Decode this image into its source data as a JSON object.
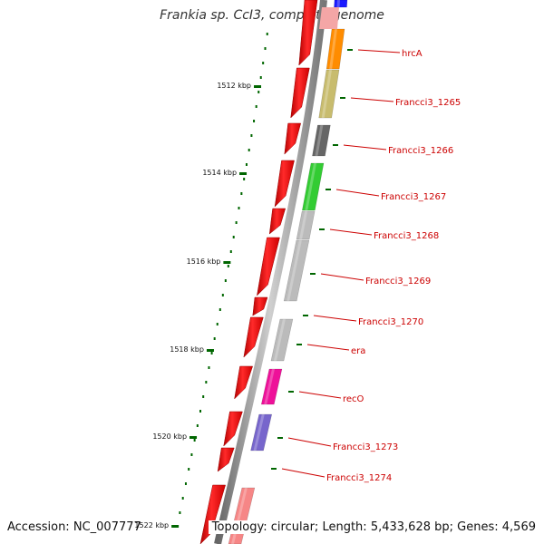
{
  "title": "Frankia sp. CcI3, complete genome",
  "accession": {
    "label": "Accession:",
    "value": "NC_007777"
  },
  "topology": {
    "label": "Topology:",
    "value": "circular",
    "length_label": "Length:",
    "length": "5,433,628 bp",
    "genes_label": "Genes:",
    "genes": "4,569"
  },
  "kbp_ticks": [
    "1512 kbp",
    "1514 kbp",
    "1516 kbp",
    "1518 kbp",
    "1520 kbp",
    "1522 kbp"
  ],
  "genes": [
    {
      "name": "hrcA",
      "color": "#ff8c00"
    },
    {
      "name": "Francci3_1265",
      "color": "#c8bc6e"
    },
    {
      "name": "Francci3_1266",
      "color": "#666666"
    },
    {
      "name": "Francci3_1267",
      "color": "#33cc33"
    },
    {
      "name": "Francci3_1268",
      "color": "#bbbbbb"
    },
    {
      "name": "Francci3_1269",
      "color": "#bbbbbb"
    },
    {
      "name": "Francci3_1270",
      "color": "#bbbbbb"
    },
    {
      "name": "era",
      "color": "#bbbbbb"
    },
    {
      "name": "recO",
      "color": "#ee1199"
    },
    {
      "name": "Francci3_1273",
      "color": "#7766cc"
    },
    {
      "name": "Francci3_1274",
      "color": "#ee2222"
    }
  ],
  "colors": {
    "strand_arrow": "#ee0000",
    "backbone": "#888888",
    "tick": "#006600",
    "label": "#cc0000"
  }
}
